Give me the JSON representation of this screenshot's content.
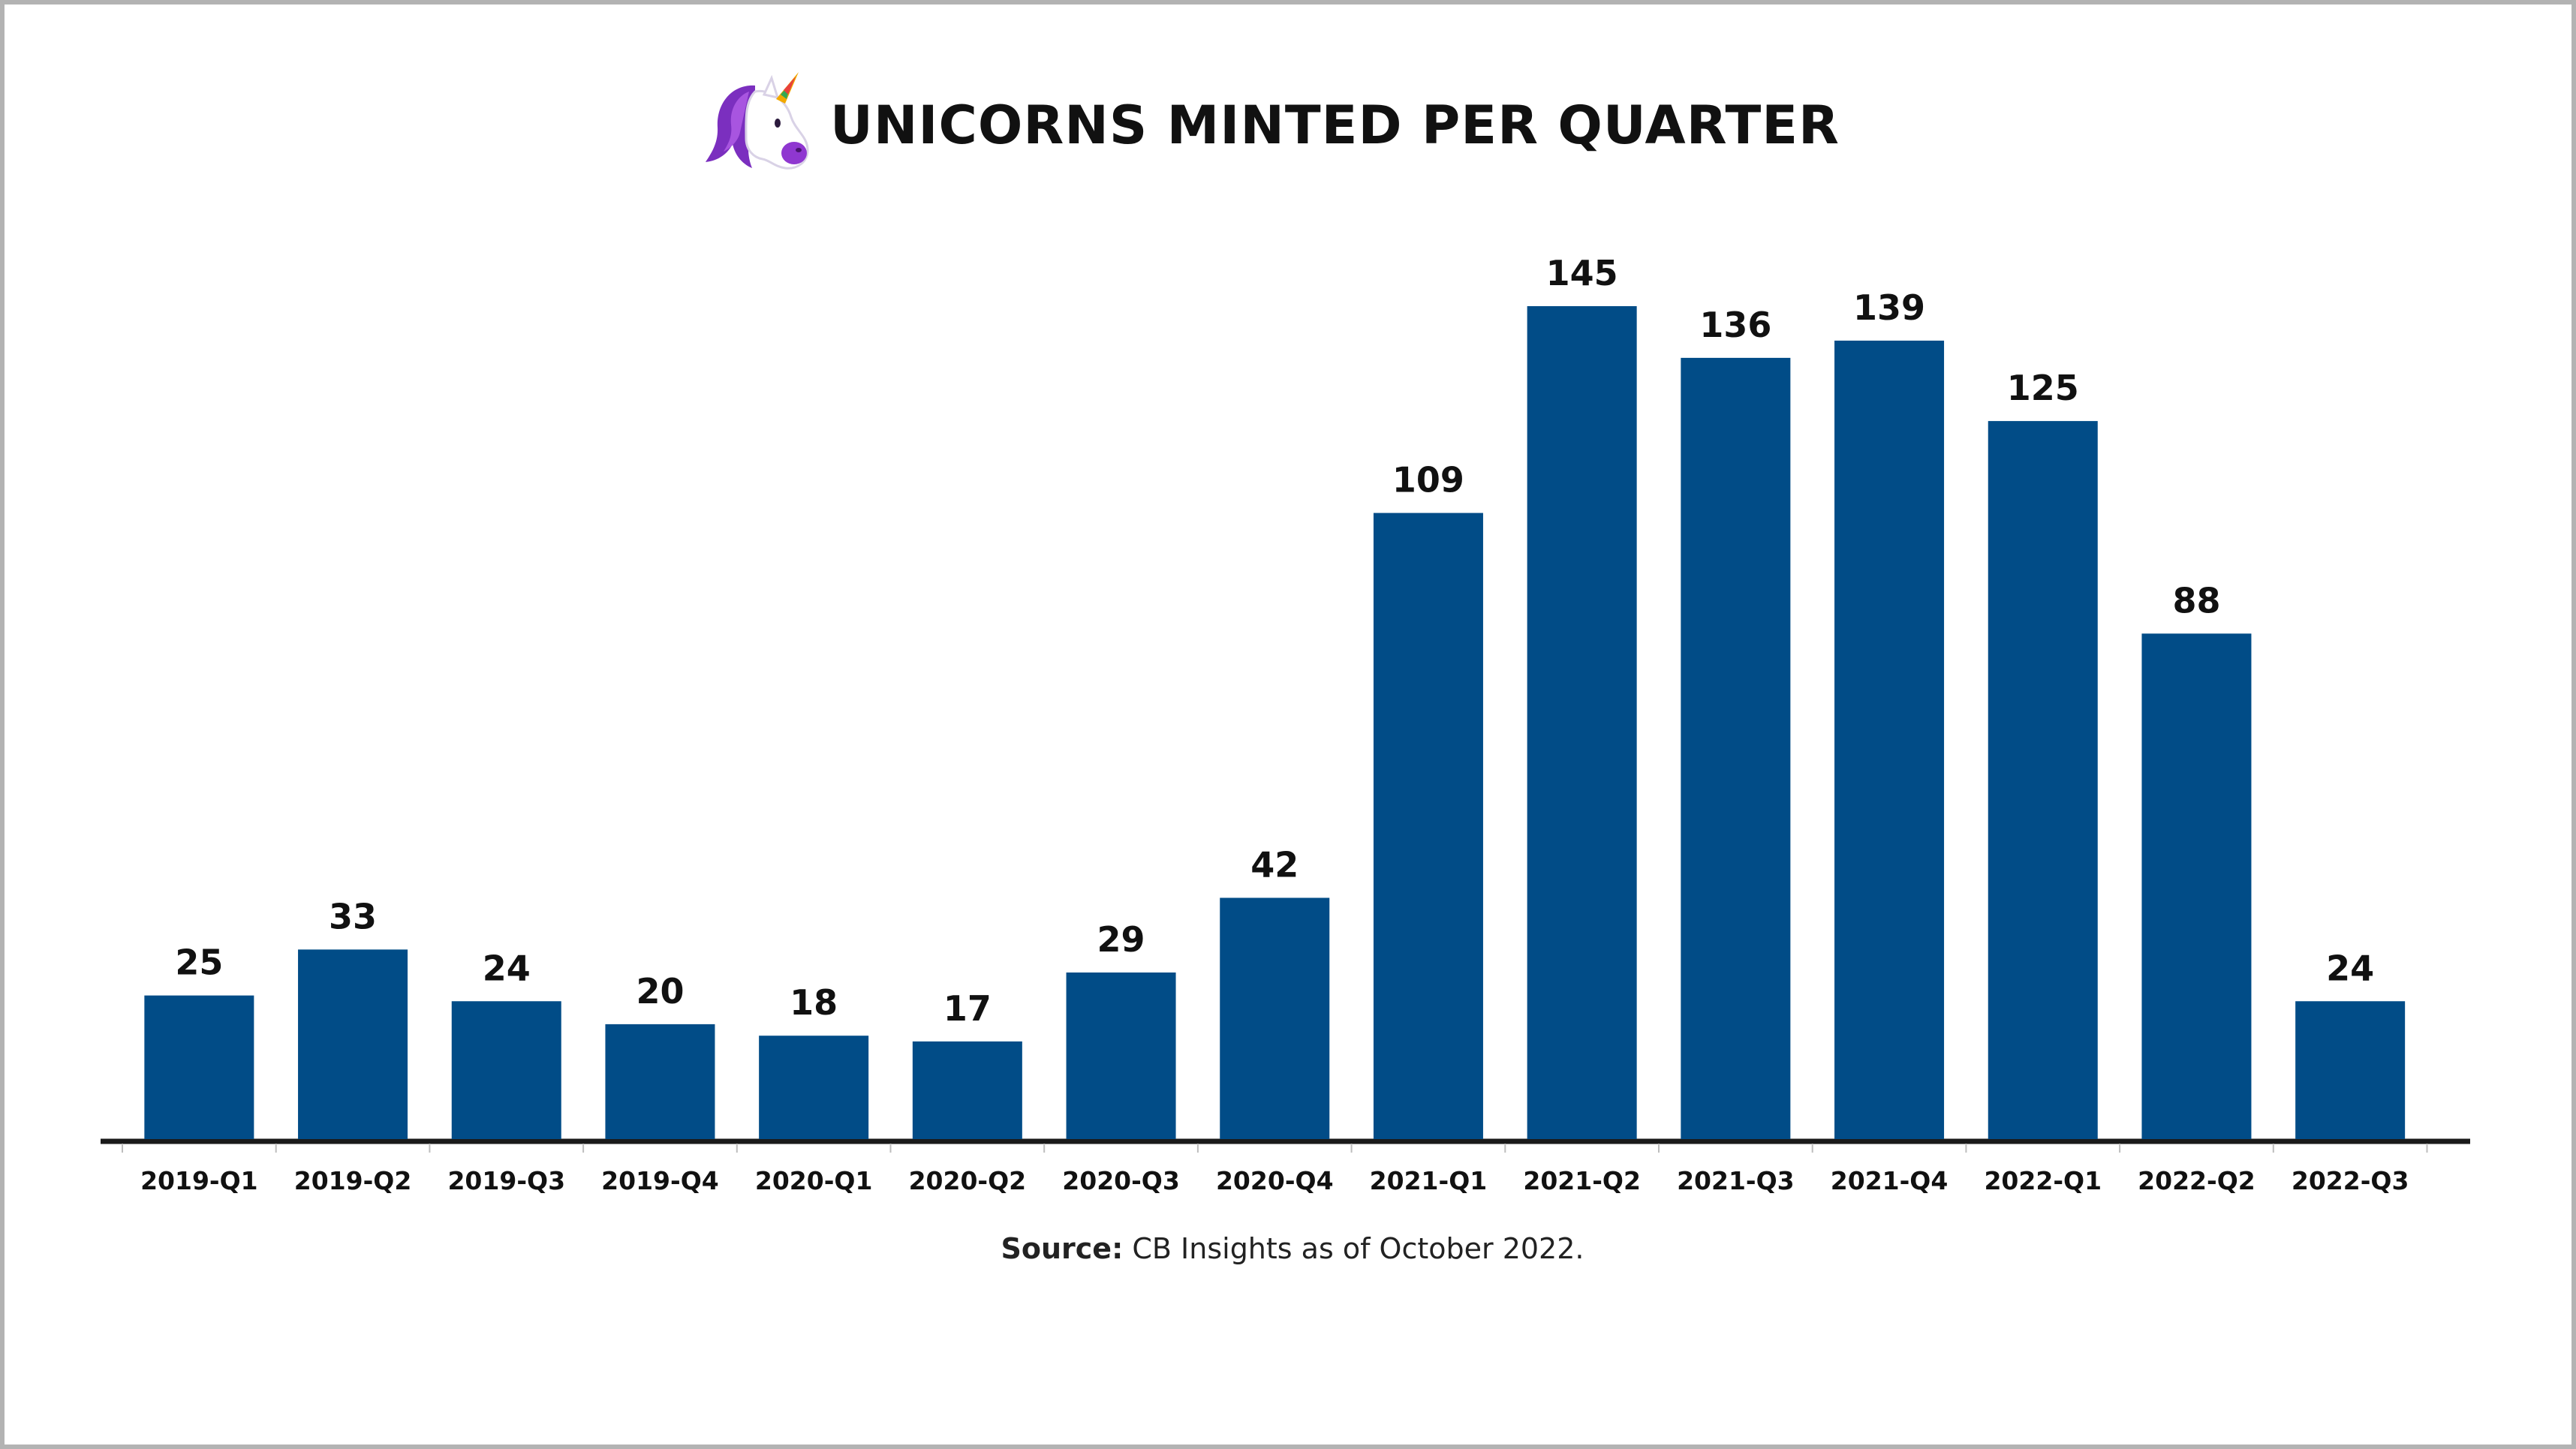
{
  "header": {
    "title": "UNICORNS MINTED PER QUARTER",
    "logo_icon": "unicorn-icon"
  },
  "footer": {
    "source_label": "Source:",
    "source_text": " CB Insights as of October 2022."
  },
  "colors": {
    "bar": "#014c87",
    "axis": "#1a1a1a",
    "text": "#111111",
    "frame_border": "#b3b3b3"
  },
  "chart_data": {
    "type": "bar",
    "title": "UNICORNS MINTED PER QUARTER",
    "xlabel": "",
    "ylabel": "",
    "categories": [
      "2019-Q1",
      "2019-Q2",
      "2019-Q3",
      "2019-Q4",
      "2020-Q1",
      "2020-Q2",
      "2020-Q3",
      "2020-Q4",
      "2021-Q1",
      "2021-Q2",
      "2021-Q3",
      "2021-Q4",
      "2022-Q1",
      "2022-Q2",
      "2022-Q3"
    ],
    "values": [
      25,
      33,
      24,
      20,
      18,
      17,
      29,
      42,
      109,
      145,
      136,
      139,
      125,
      88,
      24
    ],
    "data_labels": true,
    "grid": false,
    "legend": "none",
    "ylim": [
      0,
      145
    ]
  }
}
